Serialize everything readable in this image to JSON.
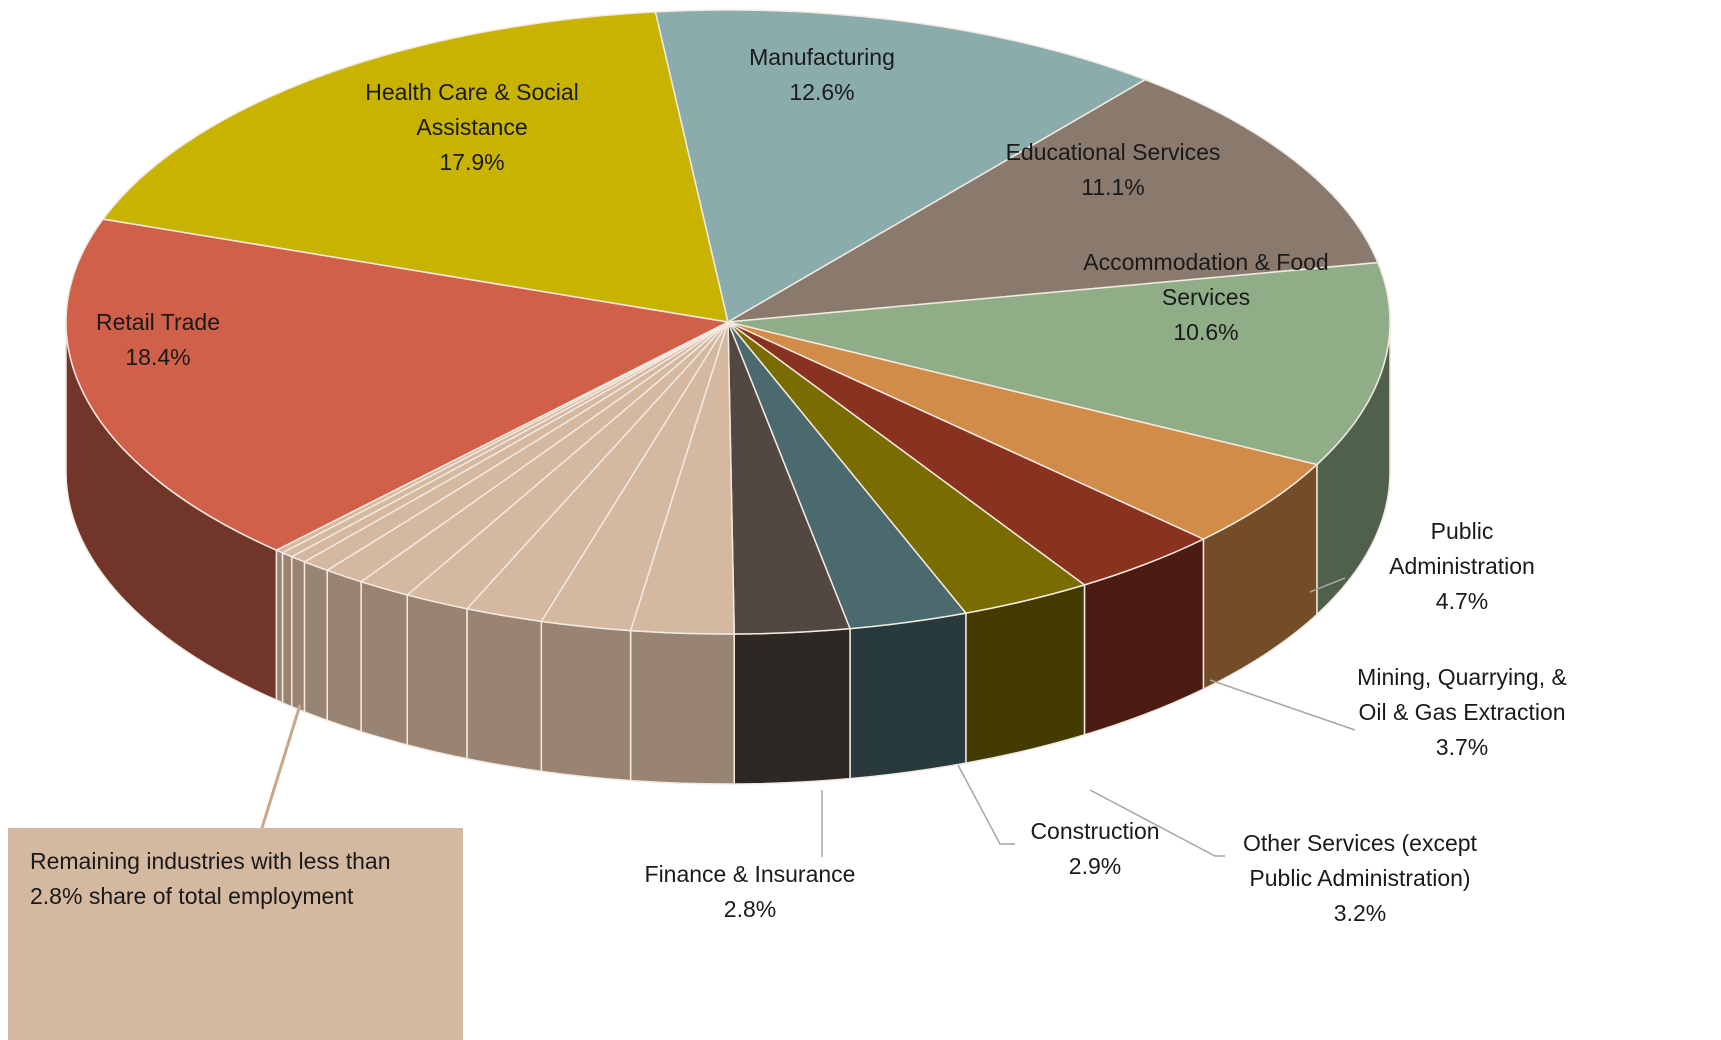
{
  "chart_data": {
    "type": "pie",
    "3d": true,
    "categories": [
      "Manufacturing",
      "Educational Services",
      "Accommodation & Food Services",
      "Public Administration",
      "Mining, Quarrying, & Oil & Gas Extraction",
      "Other Services (except Public Administration)",
      "Construction",
      "Finance & Insurance",
      null,
      null,
      null,
      null,
      null,
      null,
      null,
      null,
      null,
      null,
      "Retail Trade",
      "Health Care & Social Assistance"
    ],
    "values": [
      12.6,
      11.1,
      10.6,
      4.7,
      3.7,
      3.2,
      2.9,
      2.8,
      2.5,
      2.2,
      1.9,
      1.6,
      1.3,
      1.0,
      0.7,
      0.4,
      0.3,
      0.2,
      18.4,
      17.9
    ],
    "value_labels": [
      "12.6%",
      "11.1%",
      "10.6%",
      "4.7%",
      "3.7%",
      "3.2%",
      "2.9%",
      "2.8%",
      null,
      null,
      null,
      null,
      null,
      null,
      null,
      null,
      null,
      null,
      "18.4%",
      "17.9%"
    ],
    "colors": [
      "#8aacac",
      "#8a7a6e",
      "#8fae88",
      "#d08c48",
      "#8a3220",
      "#7a6c00",
      "#4a6a6e",
      "#524840",
      "#d4b8a0",
      "#d4b8a0",
      "#d4b8a0",
      "#d4b8a0",
      "#d4b8a0",
      "#d4b8a0",
      "#d4b8a0",
      "#d4b8a0",
      "#d4b8a0",
      "#d4b8a0",
      "#d0604a",
      "#c8b400"
    ],
    "annotation": "Remaining industries with less than 2.8% share of total employment"
  }
}
